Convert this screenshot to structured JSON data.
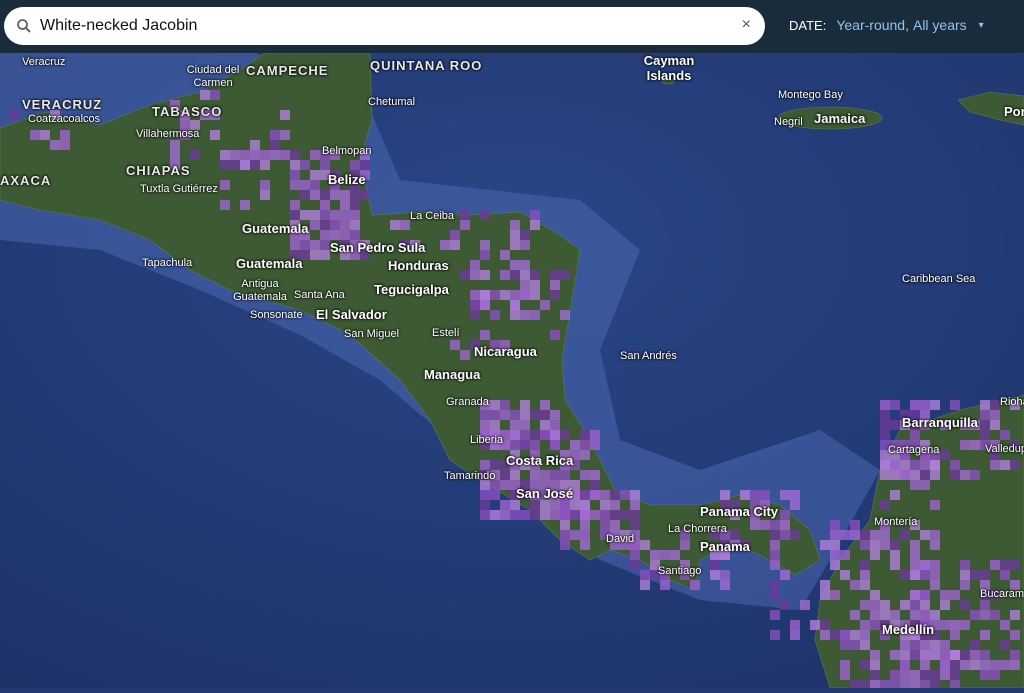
{
  "search": {
    "value": "White-necked Jacobin",
    "icon": "search-icon",
    "clear_label": "×"
  },
  "date_filter": {
    "label": "DATE:",
    "season": "Year-round,",
    "years": "All years",
    "caret": "▾"
  },
  "map": {
    "colors": {
      "ocean": "#22386e",
      "land": "#3d5a34",
      "shelf": "#4a68b0",
      "range": "#a05fd0"
    },
    "labels": [
      "Veracruz",
      "VERACRUZ",
      "Coatzacoalcos",
      "TABASCO",
      "Villahermosa",
      "CHIAPAS",
      "Tuxtla Gutiérrez",
      "AXACA",
      "Ciudad del Carmen",
      "CAMPECHE",
      "QUINTANA ROO",
      "Chetumal",
      "Belmopan",
      "Belize",
      "Guatemala",
      "Guatemala",
      "La Ceiba",
      "San Pedro Sula",
      "Honduras",
      "Tapachula",
      "Antigua Guatemala",
      "Santa Ana",
      "Tegucigalpa",
      "Sonsonate",
      "El Salvador",
      "San Miguel",
      "Estelí",
      "Nicaragua",
      "Managua",
      "Granada",
      "Liberia",
      "Tamarindo",
      "Costa Rica",
      "San José",
      "David",
      "Santiago",
      "La Chorrera",
      "Panama City",
      "Panama",
      "San Andrés",
      "Caribbean Sea",
      "Cayman Islands",
      "Montego Bay",
      "Negril",
      "Jamaica",
      "Barranquilla",
      "Riohacha",
      "Cartagena",
      "Valledupar",
      "Montería",
      "Bucaramanga",
      "Medellín",
      "Por"
    ]
  }
}
